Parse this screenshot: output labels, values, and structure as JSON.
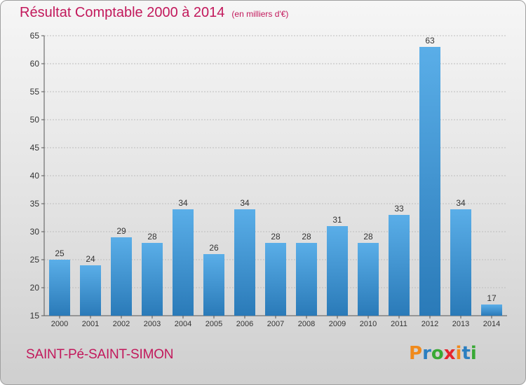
{
  "header": {
    "title": "Résultat Comptable 2000 à 2014",
    "subtitle": "(en milliers d'€)"
  },
  "footer": {
    "commune": "SAINT-Pé-SAINT-SIMON",
    "logo_text": "Proxiti"
  },
  "colors": {
    "title": "#c2185b",
    "bar_top": "#5aaee8",
    "bar_bottom": "#2a7ab8",
    "logo": [
      "#f08a1c",
      "#2b7fc0",
      "#39a935",
      "#e5262d",
      "#f08a1c",
      "#2b7fc0",
      "#39a935"
    ]
  },
  "chart_data": {
    "type": "bar",
    "categories": [
      "2000",
      "2001",
      "2002",
      "2003",
      "2004",
      "2005",
      "2006",
      "2007",
      "2008",
      "2009",
      "2010",
      "2011",
      "2012",
      "2013",
      "2014"
    ],
    "values": [
      25,
      24,
      29,
      28,
      34,
      26,
      34,
      28,
      28,
      31,
      28,
      33,
      63,
      34,
      17
    ],
    "ylim": [
      15,
      65
    ],
    "yticks": [
      15,
      20,
      25,
      30,
      35,
      40,
      45,
      50,
      55,
      60,
      65
    ],
    "grid": true,
    "data_labels": true
  }
}
